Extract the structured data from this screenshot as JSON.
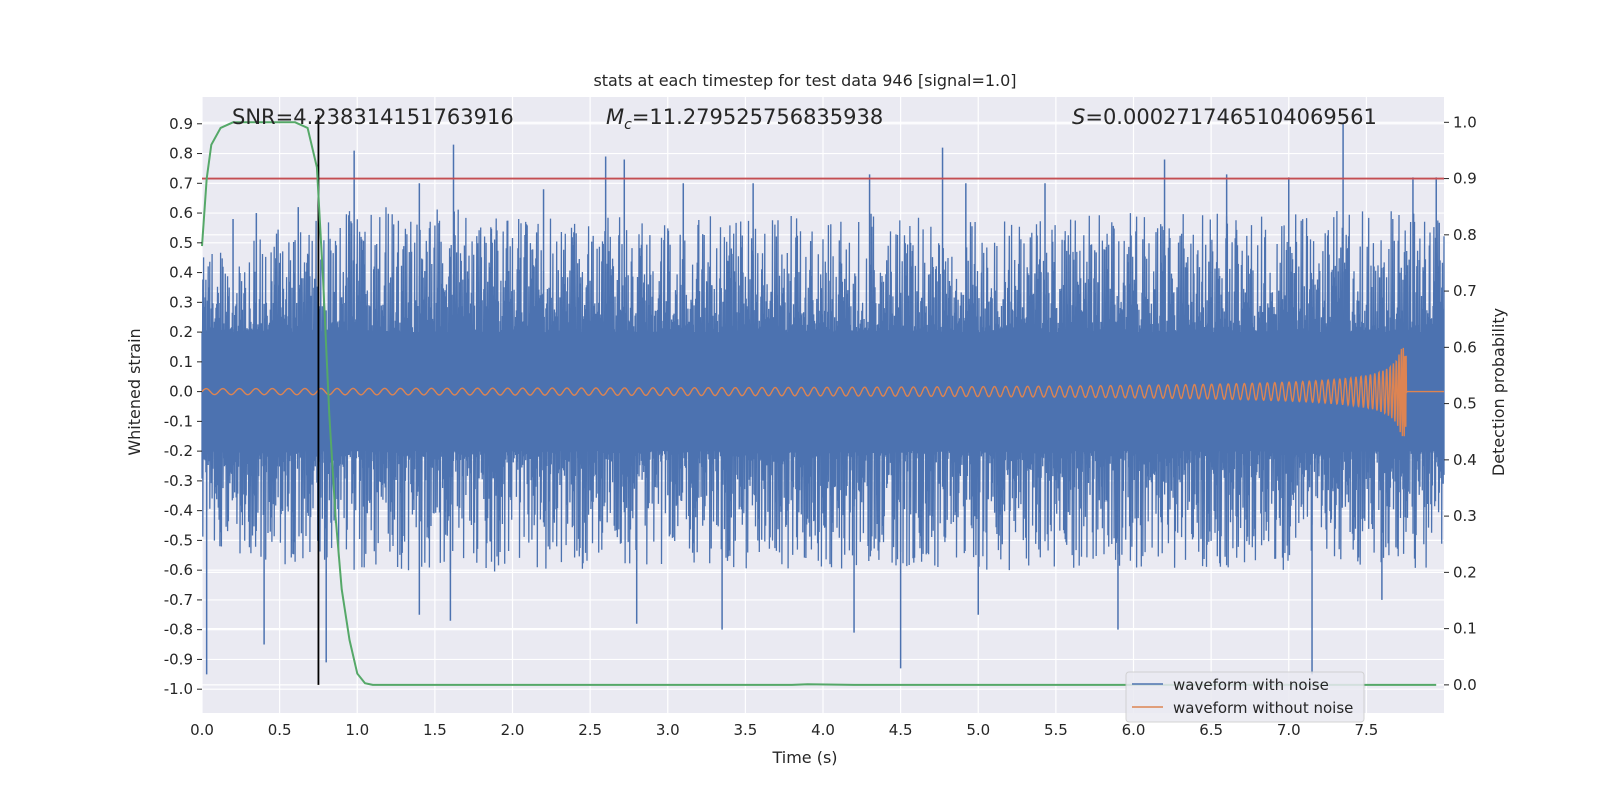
{
  "chart_data": {
    "type": "line",
    "title": "stats at each timestep for test data 946 [signal=1.0]",
    "xlabel": "Time (s)",
    "ylabel_left": "Whitened strain",
    "ylabel_right": "Detection probability",
    "xlim": [
      0.0,
      8.0
    ],
    "ylim_left": [
      -1.08,
      0.99
    ],
    "ylim_right": [
      -0.05,
      1.045
    ],
    "x_ticks": [
      "0.0",
      "0.5",
      "1.0",
      "1.5",
      "2.0",
      "2.5",
      "3.0",
      "3.5",
      "4.0",
      "4.5",
      "5.0",
      "5.5",
      "6.0",
      "6.5",
      "7.0",
      "7.5"
    ],
    "y_ticks_left": [
      "0.9",
      "0.8",
      "0.7",
      "0.6",
      "0.5",
      "0.4",
      "0.3",
      "0.2",
      "0.1",
      "0.0",
      "-0.1",
      "-0.2",
      "-0.3",
      "-0.4",
      "-0.5",
      "-0.6",
      "-0.7",
      "-0.8",
      "-0.9",
      "-1.0"
    ],
    "y_ticks_right": [
      "1.0",
      "0.9",
      "0.8",
      "0.7",
      "0.6",
      "0.5",
      "0.4",
      "0.3",
      "0.2",
      "0.1",
      "0.0"
    ],
    "grid": true,
    "background": "#eaeaf2",
    "stats": {
      "snr": "SNR=4.238314151763916",
      "mc_symbol": "M",
      "mc_sub": "c",
      "mc_value": "=11.279525756835938",
      "s_symbol": "S",
      "s_value": "=0.0002717465104069561"
    },
    "threshold": {
      "value": 0.9,
      "axis": "right",
      "color": "#c44e52"
    },
    "detection_time": {
      "value": 0.75,
      "color": "#000000"
    },
    "noise_envelope": {
      "color": "#4c72b0",
      "x": [
        0.0,
        0.5,
        1.0,
        1.5,
        2.0,
        2.5,
        3.0,
        3.5,
        4.0,
        4.5,
        5.0,
        5.5,
        6.0,
        6.5,
        7.0,
        7.5,
        8.0
      ],
      "upper": [
        0.45,
        0.55,
        0.62,
        0.63,
        0.58,
        0.6,
        0.6,
        0.58,
        0.6,
        0.6,
        0.57,
        0.6,
        0.6,
        0.6,
        0.6,
        0.62,
        0.6
      ],
      "lower": [
        -0.55,
        -0.58,
        -0.6,
        -0.62,
        -0.6,
        -0.6,
        -0.58,
        -0.6,
        -0.6,
        -0.6,
        -0.6,
        -0.6,
        -0.6,
        -0.6,
        -0.6,
        -0.58,
        -0.6
      ],
      "spikes_up": [
        [
          0.2,
          0.58
        ],
        [
          0.35,
          0.6
        ],
        [
          0.62,
          0.62
        ],
        [
          0.98,
          0.81
        ],
        [
          1.4,
          0.7
        ],
        [
          1.62,
          0.83
        ],
        [
          2.2,
          0.68
        ],
        [
          2.6,
          0.79
        ],
        [
          2.72,
          0.78
        ],
        [
          3.1,
          0.7
        ],
        [
          3.55,
          0.7
        ],
        [
          4.3,
          0.73
        ],
        [
          4.77,
          0.82
        ],
        [
          4.92,
          0.7
        ],
        [
          5.43,
          0.7
        ],
        [
          6.2,
          0.78
        ],
        [
          6.6,
          0.73
        ],
        [
          7.0,
          0.72
        ],
        [
          7.35,
          0.9
        ],
        [
          7.8,
          0.72
        ],
        [
          7.95,
          0.72
        ]
      ],
      "spikes_down": [
        [
          0.03,
          -0.95
        ],
        [
          0.4,
          -0.85
        ],
        [
          0.8,
          -0.91
        ],
        [
          1.4,
          -0.75
        ],
        [
          1.6,
          -0.77
        ],
        [
          2.8,
          -0.78
        ],
        [
          3.35,
          -0.8
        ],
        [
          4.2,
          -0.81
        ],
        [
          4.5,
          -0.93
        ],
        [
          5.0,
          -0.75
        ],
        [
          5.9,
          -0.8
        ],
        [
          7.15,
          -0.95
        ],
        [
          7.6,
          -0.7
        ]
      ]
    },
    "series": [
      {
        "name": "waveform with noise",
        "axis": "left",
        "color": "#4c72b0"
      },
      {
        "name": "waveform without noise",
        "axis": "left",
        "color": "#dd8452",
        "chirp": {
          "t_merge": 7.76,
          "peak_amplitude": 0.15,
          "base_amplitude": 0.01,
          "f0": 20,
          "t_end": 8.0
        }
      },
      {
        "axis": "right",
        "color": "#55a868",
        "x": [
          0.0,
          0.03,
          0.06,
          0.12,
          0.2,
          0.3,
          0.45,
          0.6,
          0.68,
          0.74,
          0.78,
          0.82,
          0.86,
          0.9,
          0.95,
          1.0,
          1.05,
          1.1,
          1.5,
          2.0,
          3.0,
          3.8,
          3.9,
          4.2,
          5.0,
          6.0,
          7.0,
          7.95
        ],
        "y": [
          0.78,
          0.9,
          0.96,
          0.99,
          1.0,
          1.0,
          1.0,
          1.0,
          0.99,
          0.92,
          0.72,
          0.48,
          0.3,
          0.17,
          0.08,
          0.02,
          0.003,
          0.0,
          0.0,
          0.0,
          0.0,
          0.0,
          0.001,
          0.0,
          0.0,
          0.0,
          0.0,
          0.0
        ]
      }
    ],
    "legend": {
      "placement": "lower-right",
      "entries": [
        "waveform with noise",
        "waveform without noise"
      ]
    }
  }
}
